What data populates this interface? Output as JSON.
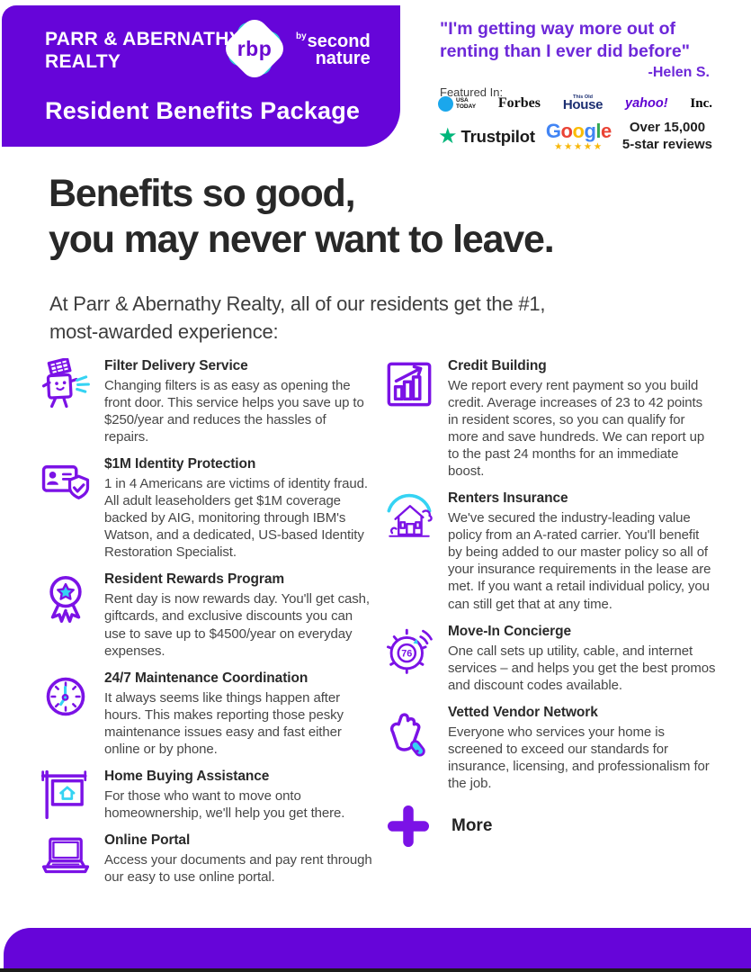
{
  "colors": {
    "brand_purple": "#6605d9",
    "icon_purple": "#7b12e6",
    "accent_cyan": "#35d3f3",
    "quote_purple": "#6d28d9",
    "trustpilot_green": "#00b67a",
    "star_gold": "#f7b709",
    "usatoday_blue": "#1aa7ec",
    "house_navy": "#1c2f72",
    "yahoo_purple": "#5f01d1",
    "heading_dark": "#282828",
    "google_letter_colors": [
      "#4285F4",
      "#EA4335",
      "#FBBC05",
      "#4285F4",
      "#34A853",
      "#EA4335"
    ]
  },
  "header": {
    "company_line1": "PARR & ABERNATHY",
    "company_line2": "REALTY",
    "package_title": "Resident Benefits Package",
    "logo": {
      "mark_text": "rbp",
      "by": "by",
      "brand_line1": "second",
      "brand_line2": "nature"
    }
  },
  "testimonial": {
    "quote_line1": "\"I'm getting way more out of",
    "quote_line2": "renting than I ever did before\"",
    "attribution": "-Helen S."
  },
  "featured_in": {
    "label": "Featured In:",
    "usatoday_line1": "USA",
    "usatoday_line2": "TODAY",
    "forbes": "Forbes",
    "house_small": "This Old",
    "house_big": "House",
    "yahoo": "yahoo!",
    "inc": "Inc."
  },
  "reviews": {
    "trustpilot": "Trustpilot",
    "google": "Google",
    "stars": "★★★★★",
    "summary_line1": "Over 15,000",
    "summary_line2": "5-star reviews"
  },
  "headline": {
    "line1": "Benefits so good,",
    "line2": "you may never want to leave."
  },
  "intro": {
    "line1": "At Parr & Abernathy Realty, all of our residents get the #1,",
    "line2": "most-awarded experience:"
  },
  "benefits_left": [
    {
      "icon": "filter-delivery-icon",
      "title": "Filter Delivery Service",
      "description": "Changing filters is as easy as opening the front door. This service helps you save up to $250/year and reduces the hassles of repairs."
    },
    {
      "icon": "identity-protection-icon",
      "title": "$1M Identity Protection",
      "description": "1 in 4 Americans are victims of identity fraud. All adult leaseholders get $1M coverage backed by AIG, monitoring through IBM's Watson, and a dedicated, US-based Identity Restoration Specialist."
    },
    {
      "icon": "rewards-ribbon-icon",
      "title": "Resident Rewards Program",
      "description": "Rent day is now rewards day. You'll get cash, giftcards, and exclusive discounts you can use to save up to $4500/year on everyday expenses."
    },
    {
      "icon": "maintenance-clock-icon",
      "title": "24/7 Maintenance Coordination",
      "description": "It always seems like things happen after hours. This makes reporting those pesky maintenance issues easy and fast either online or by phone."
    },
    {
      "icon": "home-sign-icon",
      "title": "Home Buying Assistance",
      "description": "For those who want to move onto homeownership, we'll help you get there."
    },
    {
      "icon": "laptop-icon",
      "title": "Online Portal",
      "description": "Access your documents and pay rent through our easy to use online portal."
    }
  ],
  "benefits_right": [
    {
      "icon": "credit-chart-icon",
      "title": "Credit Building",
      "description": "We report every rent payment so you build credit. Average increases of 23 to 42 points in resident scores, so you can qualify for more and save hundreds. We can report up to the past 24 months for an immediate boost."
    },
    {
      "icon": "insured-house-icon",
      "title": "Renters Insurance",
      "description": "We've secured the industry-leading value policy from an A-rated carrier. You'll benefit by being added to our master policy so all of your insurance requirements in the lease are met. If you want a retail individual policy, you can still get that at any time."
    },
    {
      "icon": "concierge-dial-icon",
      "title": "Move-In Concierge",
      "description": "One call sets up utility, cable, and internet services – and helps you get the best promos and discount codes available."
    },
    {
      "icon": "thumbs-up-icon",
      "title": "Vetted Vendor Network",
      "description": "Everyone who services your home is screened to exceed our standards for insurance, licensing, and professionalism for the job."
    }
  ],
  "more": {
    "label": "More"
  }
}
